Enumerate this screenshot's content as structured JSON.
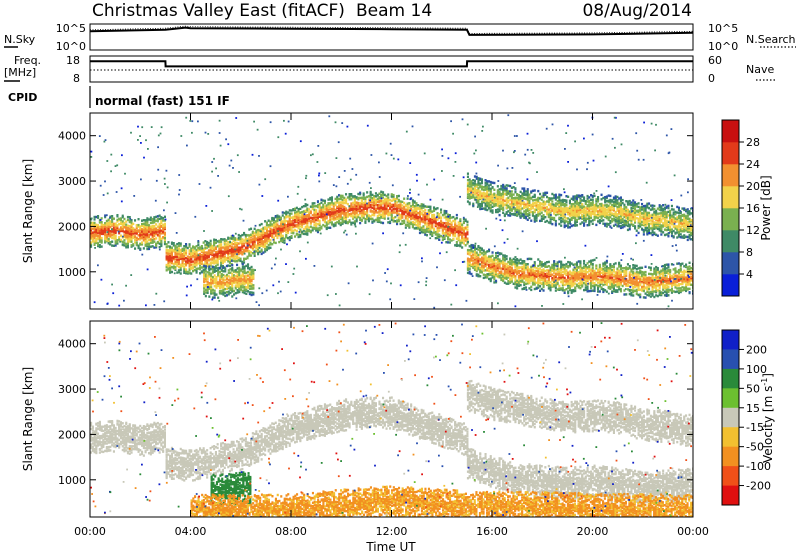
{
  "header": {
    "title": "Christmas Valley East (fitACF)",
    "beam": "Beam 14",
    "date": "08/Aug/2014"
  },
  "panels": {
    "noise_label": "N.Sky",
    "noise_ticks": [
      "10^5",
      "10^0"
    ],
    "noise_right_label": "N.Search",
    "noise_right_ticks": [
      "10^5",
      "10^0"
    ],
    "freq_label_1": "Freq.",
    "freq_label_2": "[MHz]",
    "freq_ticks": [
      "18",
      "8"
    ],
    "nave_label": "Nave",
    "nave_ticks": [
      "60",
      "0"
    ],
    "cpid_label": "CPID",
    "cpid_text": "normal (fast) 151 IF"
  },
  "axes": {
    "ylabel": "Slant Range [km]",
    "xlabel": "Time UT",
    "y_ticks": [
      "1000",
      "2000",
      "3000",
      "4000"
    ],
    "x_ticks": [
      "00:00",
      "04:00",
      "08:00",
      "12:00",
      "16:00",
      "20:00",
      "00:00"
    ]
  },
  "colorbars": {
    "power": {
      "label": "Power [dB]",
      "ticks": [
        "4",
        "8",
        "12",
        "16",
        "20",
        "24",
        "28"
      ],
      "colors": [
        "#0a1fd8",
        "#2d55a8",
        "#3f8a66",
        "#7ab050",
        "#f2d24a",
        "#f29030",
        "#e23a1a",
        "#c81010"
      ]
    },
    "velocity": {
      "label": "Velocity [m s",
      "label_sup": "-1",
      "label_end": "]",
      "ticks": [
        "200",
        "100",
        "50",
        "15",
        "-15",
        "-50",
        "-100",
        "-200"
      ],
      "colors": [
        "#1020c8",
        "#2850b0",
        "#2a8a3a",
        "#6cc030",
        "#c8c8b8",
        "#f2c030",
        "#f29020",
        "#f05018",
        "#e01010"
      ]
    }
  },
  "chart_data": [
    {
      "type": "line",
      "title": "Christmas Valley East (fitACF)",
      "xlabel": "",
      "ylabel": "N.Sky",
      "xlim": [
        0,
        24
      ],
      "ylim_log10": [
        0,
        5
      ],
      "x": [
        0,
        3,
        3.8,
        4,
        8,
        12,
        15,
        15.1,
        20,
        24
      ],
      "series": [
        {
          "name": "N.Sky",
          "values_log10": [
            3.6,
            3.9,
            4.3,
            4.2,
            4.1,
            4.0,
            3.9,
            2.9,
            3.0,
            3.3
          ]
        }
      ]
    },
    {
      "type": "line",
      "xlabel": "",
      "ylabel": "Freq. [MHz]",
      "xlim": [
        0,
        24
      ],
      "ylim": [
        8,
        18
      ],
      "x": [
        0,
        3,
        3.01,
        15,
        15.01,
        24
      ],
      "series": [
        {
          "name": "Freq.",
          "values": [
            16,
            16,
            14,
            14,
            16,
            16
          ]
        }
      ]
    },
    {
      "type": "heatmap",
      "ylabel": "Slant Range [km]",
      "xlabel": "Time UT",
      "xlim": [
        0,
        24
      ],
      "ylim": [
        180,
        4500
      ],
      "colorbar": "Power [dB]",
      "echo_bands": [
        {
          "t": [
            0,
            1,
            2,
            3,
            3.01,
            4,
            6,
            8,
            10,
            11,
            12,
            13,
            14,
            15
          ],
          "r": [
            1850,
            1900,
            1800,
            1900,
            1300,
            1250,
            1500,
            2050,
            2350,
            2400,
            2400,
            2200,
            2000,
            1800
          ],
          "power": 26
        },
        {
          "t": [
            15,
            16,
            17,
            18,
            19,
            20,
            21,
            22,
            23,
            24
          ],
          "r": [
            1300,
            1100,
            950,
            900,
            850,
            900,
            850,
            750,
            800,
            850
          ],
          "power": 24
        },
        {
          "t": [
            15,
            16,
            17,
            18,
            19,
            20,
            21,
            22,
            23,
            24
          ],
          "r": [
            2800,
            2600,
            2500,
            2400,
            2300,
            2350,
            2300,
            2150,
            2100,
            2000
          ],
          "power": 20
        },
        {
          "t": [
            4.5,
            5,
            5.5,
            6,
            6.5
          ],
          "r": [
            780,
            750,
            770,
            820,
            800
          ],
          "power": 22
        }
      ]
    },
    {
      "type": "heatmap",
      "ylabel": "Slant Range [km]",
      "xlabel": "Time UT",
      "xlim": [
        0,
        24
      ],
      "ylim": [
        180,
        4500
      ],
      "colorbar": "Velocity [m s-1]",
      "echo_bands": [
        {
          "t": [
            0,
            1,
            2,
            3,
            3.01,
            4,
            6,
            8,
            10,
            11,
            12,
            13,
            14,
            15
          ],
          "r": [
            1900,
            1950,
            1850,
            1950,
            1350,
            1300,
            1550,
            2100,
            2400,
            2450,
            2450,
            2250,
            2050,
            1850
          ],
          "velocity": 0
        },
        {
          "t": [
            15,
            16,
            17,
            18,
            19,
            20,
            21,
            22,
            23,
            24
          ],
          "r": [
            1350,
            1150,
            1000,
            950,
            900,
            950,
            900,
            800,
            850,
            900
          ],
          "velocity": 0
        },
        {
          "t": [
            15,
            16,
            17,
            18,
            19,
            20,
            21,
            22,
            23,
            24
          ],
          "r": [
            2850,
            2650,
            2550,
            2450,
            2350,
            2400,
            2350,
            2200,
            2150,
            2050
          ],
          "velocity": 0
        },
        {
          "t": [
            4.8,
            5.2,
            5.6,
            6,
            6.4
          ],
          "r": [
            780,
            760,
            780,
            800,
            790
          ],
          "velocity": 60
        },
        {
          "t": [
            4,
            6,
            8,
            10,
            12,
            14,
            16,
            18,
            20,
            22,
            24
          ],
          "r": [
            320,
            300,
            320,
            420,
            500,
            420,
            380,
            360,
            340,
            320,
            300
          ],
          "velocity": -40
        }
      ]
    }
  ]
}
